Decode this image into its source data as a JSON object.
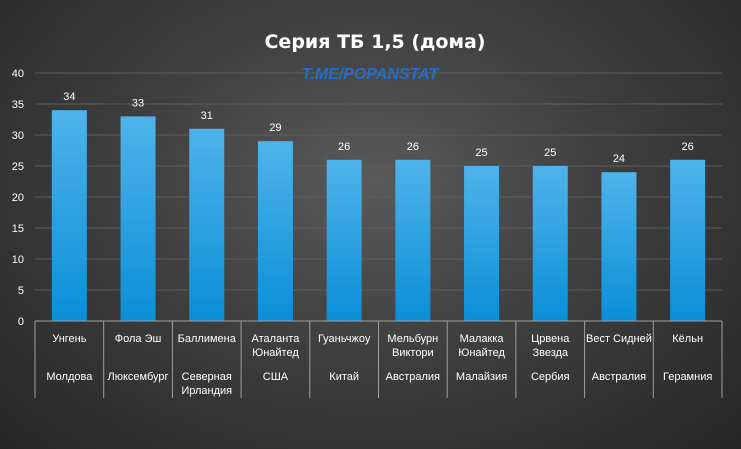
{
  "watermark": "T.ME/POPANSTAT",
  "colors": {
    "bar_top": "#4fb3ea",
    "bar_bottom": "#0a8fd8",
    "text": "#ffffff",
    "watermark": "#1f6fd1"
  },
  "chart_data": {
    "type": "bar",
    "title": "Серия ТБ 1,5 (дома)",
    "ylim": [
      0,
      40
    ],
    "yticks": [
      0,
      5,
      10,
      15,
      20,
      25,
      30,
      35,
      40
    ],
    "grid": true,
    "categories": [
      {
        "team": [
          "Унгень"
        ],
        "country": [
          "Молдова"
        ]
      },
      {
        "team": [
          "Фола  Эш"
        ],
        "country": [
          "Люксембург"
        ]
      },
      {
        "team": [
          "Баллимена"
        ],
        "country": [
          "Северная",
          "Ирландия"
        ]
      },
      {
        "team": [
          "Аталанта",
          "Юнайтед"
        ],
        "country": [
          "США"
        ]
      },
      {
        "team": [
          "Гуаньчжоу"
        ],
        "country": [
          "Китай"
        ]
      },
      {
        "team": [
          "Мельбурн",
          "Виктори"
        ],
        "country": [
          "Австралия"
        ]
      },
      {
        "team": [
          "Малакка",
          "Юнайтед"
        ],
        "country": [
          "Малайзия"
        ]
      },
      {
        "team": [
          "Црвена",
          "Звезда"
        ],
        "country": [
          "Сербия"
        ]
      },
      {
        "team": [
          "Вест Сидней"
        ],
        "country": [
          "Австралия"
        ]
      },
      {
        "team": [
          "Кёльн"
        ],
        "country": [
          "Герамния"
        ]
      }
    ],
    "values": [
      34,
      33,
      31,
      29,
      26,
      26,
      25,
      25,
      24,
      26
    ]
  }
}
